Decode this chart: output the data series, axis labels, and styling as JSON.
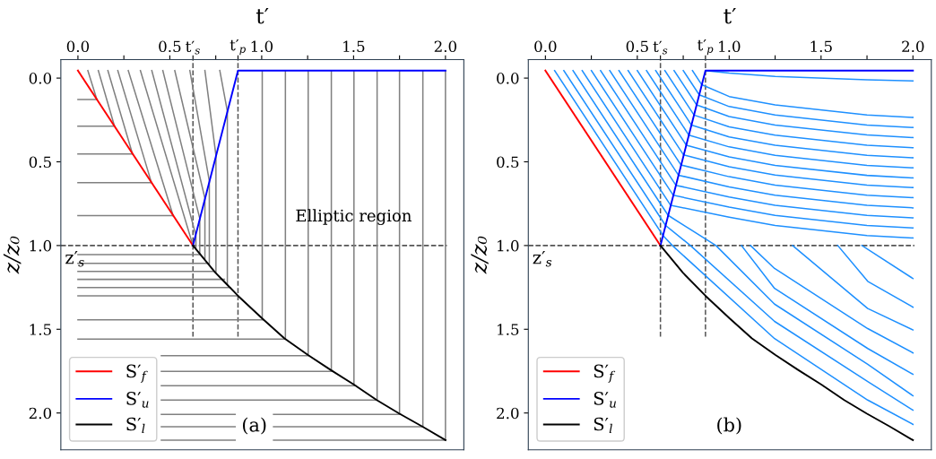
{
  "chart_data": [
    {
      "type": "line",
      "xlabel": "t′",
      "ylabel": "z/z₀",
      "xlim": [
        -0.093,
        2.1
      ],
      "ylim": [
        2.22,
        -0.11
      ],
      "xticks": [
        {
          "value": 0,
          "label": "0.0"
        },
        {
          "value": 0.25,
          "label": null
        },
        {
          "value": 0.5,
          "label": "0.5"
        },
        {
          "value": 0.626,
          "label": "t′$_{s}$"
        },
        {
          "value": 0.75,
          "label": null
        },
        {
          "value": 0.871,
          "label": "t′$_{p}$"
        },
        {
          "value": 1,
          "label": "1.0"
        },
        {
          "value": 1.25,
          "label": null
        },
        {
          "value": 1.5,
          "label": "1.5"
        },
        {
          "value": 1.75,
          "label": null
        },
        {
          "value": 2,
          "label": "2.0"
        }
      ],
      "yticks": [
        {
          "value": 0,
          "label": "0.0"
        },
        {
          "value": 0.5,
          "label": "0.5"
        },
        {
          "value": 1,
          "label": "1.0"
        },
        {
          "value": 1.5,
          "label": "1.5"
        },
        {
          "value": 2,
          "label": "2.0"
        }
      ],
      "legend": "bottom left",
      "ref_lines": [
        {
          "axis": "y",
          "value": 1.0,
          "color": "#555555",
          "line_style": "dashed"
        },
        {
          "axis": "x",
          "value": 0.626,
          "color": "#555555",
          "line_style": "dashed"
        },
        {
          "axis": "x",
          "value": 0.871,
          "color": "#555555",
          "line_style": "dashed"
        }
      ],
      "annotations": [
        {
          "text": "Elliptic region",
          "x": 1.5,
          "y": 0.83
        },
        "z′$_{s}$",
        {
          "text": "(a)",
          "x": 0.96,
          "y": 2.08
        }
      ],
      "series": [
        {
          "color": "#808080",
          "x": [
            0.0,
            0.104
          ],
          "values": [
            0.128,
            0.128
          ]
        },
        {
          "color": "#808080",
          "x": [
            0.0,
            0.199
          ],
          "values": [
            0.287,
            0.287
          ]
        },
        {
          "color": "#808080",
          "x": [
            0.0,
            0.298
          ],
          "values": [
            0.453,
            0.453
          ]
        },
        {
          "color": "#808080",
          "x": [
            0.0,
            0.401
          ],
          "values": [
            0.624,
            0.624
          ]
        },
        {
          "color": "#808080",
          "x": [
            0.0,
            0.519
          ],
          "values": [
            0.821,
            0.821
          ]
        },
        {
          "color": "#808080",
          "x": [
            0.0,
            0.666
          ],
          "values": [
            1.054,
            1.054
          ]
        },
        {
          "color": "#808080",
          "x": [
            0.0,
            0.71
          ],
          "values": [
            1.106,
            1.106
          ]
        },
        {
          "color": "#808080",
          "x": [
            0.0,
            0.748
          ],
          "values": [
            1.154,
            1.154
          ]
        },
        {
          "color": "#808080",
          "x": [
            0.0,
            0.797
          ],
          "values": [
            1.202,
            1.202
          ]
        },
        {
          "color": "#808080",
          "x": [
            0.0,
            0.829
          ],
          "values": [
            1.251,
            1.251
          ]
        },
        {
          "color": "#808080",
          "x": [
            0.0,
            0.871
          ],
          "values": [
            1.301,
            1.301
          ]
        },
        {
          "color": "#808080",
          "x": [
            0.0,
            1.01
          ],
          "values": [
            1.444,
            1.444
          ]
        },
        {
          "color": "#808080",
          "x": [
            0.0,
            1.128
          ],
          "values": [
            1.559,
            1.559
          ]
        },
        {
          "color": "#808080",
          "x": [
            0.454,
            1.257
          ],
          "values": [
            1.658,
            1.658
          ]
        },
        {
          "color": "#808080",
          "x": [
            0.454,
            1.387
          ],
          "values": [
            1.752,
            1.752
          ]
        },
        {
          "color": "#808080",
          "x": [
            0.454,
            1.512
          ],
          "values": [
            1.837,
            1.837
          ]
        },
        {
          "color": "#808080",
          "x": [
            0.454,
            1.626
          ],
          "values": [
            1.923,
            1.923
          ]
        },
        {
          "color": "#808080",
          "x": [
            0.454,
            1.756
          ],
          "values": [
            2.008,
            2.008
          ]
        },
        {
          "color": "#808080",
          "x": [
            0.454,
            1.876
          ],
          "values": [
            2.082,
            2.082
          ]
        },
        {
          "color": "#808080",
          "x": [
            0.454,
            2.0
          ],
          "values": [
            2.162,
            2.162
          ]
        },
        {
          "color": "#808080",
          "x": [
            0.054,
            0.103
          ],
          "values": [
            -0.045,
            0.128
          ]
        },
        {
          "color": "#808080",
          "x": [
            0.111,
            0.199
          ],
          "values": [
            -0.045,
            0.287
          ]
        },
        {
          "color": "#808080",
          "x": [
            0.163,
            0.297
          ],
          "values": [
            -0.045,
            0.453
          ]
        },
        {
          "color": "#808080",
          "x": [
            0.217,
            0.4
          ],
          "values": [
            -0.045,
            0.624
          ]
        },
        {
          "color": "#808080",
          "x": [
            0.274,
            0.518
          ],
          "values": [
            -0.045,
            0.821
          ]
        },
        {
          "color": "#808080",
          "x": [
            0.34,
            0.626
          ],
          "values": [
            -0.045,
            1.0
          ]
        },
        {
          "color": "#808080",
          "x": [
            0.402,
            0.642,
            0.642
          ],
          "values": [
            -0.045,
            0.94,
            1.02
          ]
        },
        {
          "color": "#808080",
          "x": [
            0.462,
            0.663,
            0.663
          ],
          "values": [
            -0.045,
            0.838,
            1.045
          ]
        },
        {
          "color": "#808080",
          "x": [
            0.527,
            0.691,
            0.691
          ],
          "values": [
            -0.045,
            0.718,
            1.08
          ]
        },
        {
          "color": "#808080",
          "x": [
            0.609,
            0.715,
            0.715
          ],
          "values": [
            -0.045,
            0.615,
            1.11
          ]
        },
        {
          "color": "#808080",
          "x": [
            0.691,
            0.751,
            0.751
          ],
          "values": [
            -0.045,
            0.462,
            1.16
          ]
        },
        {
          "color": "#808080",
          "x": [
            0.772,
            0.813,
            0.813
          ],
          "values": [
            -0.045,
            0.197,
            1.23
          ]
        },
        {
          "color": "#808080",
          "x": [
            1.003,
            1.003
          ],
          "values": [
            -0.045,
            1.436
          ]
        },
        {
          "color": "#808080",
          "x": [
            1.129,
            1.129
          ],
          "values": [
            -0.045,
            1.555
          ]
        },
        {
          "color": "#808080",
          "x": [
            1.253,
            1.253
          ],
          "values": [
            -0.045,
            1.654
          ]
        },
        {
          "color": "#808080",
          "x": [
            1.379,
            1.379
          ],
          "values": [
            -0.045,
            1.745
          ]
        },
        {
          "color": "#808080",
          "x": [
            1.502,
            1.502
          ],
          "values": [
            -0.045,
            1.829
          ]
        },
        {
          "color": "#808080",
          "x": [
            1.628,
            1.628
          ],
          "values": [
            -0.045,
            1.923
          ]
        },
        {
          "color": "#808080",
          "x": [
            1.75,
            1.75
          ],
          "values": [
            -0.045,
            2.003
          ]
        },
        {
          "color": "#808080",
          "x": [
            1.877,
            1.877
          ],
          "values": [
            -0.045,
            2.082
          ]
        },
        {
          "color": "#808080",
          "x": [
            2.0,
            2.0
          ],
          "values": [
            -0.045,
            2.162
          ]
        },
        {
          "name": "S′$_{f}$",
          "color": "#ff0000",
          "x": [
            0.0,
            0.626
          ],
          "values": [
            -0.045,
            1.0
          ]
        },
        {
          "name": "S′$_{u}$",
          "color": "#0000ff",
          "x": [
            0.626,
            0.871,
            2.0
          ],
          "values": [
            1.0,
            -0.045,
            -0.045
          ]
        },
        {
          "name": "S′$_{l}$",
          "color": "#000000",
          "x": [
            0.626,
            0.748,
            0.871,
            1.003,
            1.124,
            1.252,
            1.377,
            1.5,
            1.626,
            1.748,
            1.876,
            2.0
          ],
          "values": [
            1.0,
            1.162,
            1.3,
            1.436,
            1.555,
            1.654,
            1.744,
            1.829,
            1.923,
            2.003,
            2.082,
            2.162
          ]
        }
      ]
    },
    {
      "type": "line",
      "xlabel": "t′",
      "ylabel": "z/z₀",
      "xlim": [
        -0.093,
        2.1
      ],
      "ylim": [
        2.22,
        -0.11
      ],
      "xticks": [
        {
          "value": 0,
          "label": "0.0"
        },
        {
          "value": 0.25,
          "label": null
        },
        {
          "value": 0.5,
          "label": "0.5"
        },
        {
          "value": 0.626,
          "label": "t′$_{s}$"
        },
        {
          "value": 0.75,
          "label": null
        },
        {
          "value": 0.871,
          "label": "t′$_{p}$"
        },
        {
          "value": 1,
          "label": "1.0"
        },
        {
          "value": 1.25,
          "label": null
        },
        {
          "value": 1.5,
          "label": "1.5"
        },
        {
          "value": 1.75,
          "label": null
        },
        {
          "value": 2,
          "label": "2.0"
        }
      ],
      "yticks": [
        {
          "value": 0,
          "label": "0.0"
        },
        {
          "value": 0.5,
          "label": "0.5"
        },
        {
          "value": 1,
          "label": "1.0"
        },
        {
          "value": 1.5,
          "label": "1.5"
        },
        {
          "value": 2,
          "label": "2.0"
        }
      ],
      "legend": "bottom left",
      "ref_lines": [
        {
          "axis": "y",
          "value": 1.0,
          "color": "#555555",
          "line_style": "dashed"
        },
        {
          "axis": "x",
          "value": 0.626,
          "color": "#555555",
          "line_style": "dashed"
        },
        {
          "axis": "x",
          "value": 0.871,
          "color": "#555555",
          "line_style": "dashed"
        }
      ],
      "annotations": [
        "z′$_{s}$",
        {
          "text": "(b)",
          "x": 1.0,
          "y": 2.08
        }
      ],
      "series": [
        {
          "color": "#1e90ff",
          "x": [
            0.05,
            0.64,
            0.691,
            1.247,
            1.754,
            2.0
          ],
          "values": [
            -0.045,
            0.94,
            1.0,
            1.556,
            1.923,
            2.068
          ]
        },
        {
          "color": "#1e90ff",
          "x": [
            0.1,
            0.654,
            0.789,
            1.247,
            1.754,
            2.0
          ],
          "values": [
            -0.045,
            0.88,
            1.0,
            1.453,
            1.812,
            1.983
          ]
        },
        {
          "color": "#1e90ff",
          "x": [
            0.15,
            0.668,
            0.928,
            1.247,
            1.754,
            2.0
          ],
          "values": [
            -0.045,
            0.82,
            1.0,
            1.35,
            1.709,
            1.897
          ]
        },
        {
          "color": "#1e90ff",
          "x": [
            0.2,
            0.682,
            1.0,
            1.25,
            1.75,
            2.0
          ],
          "values": [
            -0.045,
            0.76,
            0.83,
            0.88,
            0.94,
            0.955
          ]
        },
        {
          "color": "#1e90ff",
          "x": [
            0.25,
            0.696,
            1.0,
            1.25,
            1.75,
            2.0
          ],
          "values": [
            -0.045,
            0.7,
            0.77,
            0.82,
            0.88,
            0.895
          ]
        },
        {
          "color": "#1e90ff",
          "x": [
            0.3,
            0.71,
            1.0,
            1.25,
            1.75,
            2.0
          ],
          "values": [
            -0.045,
            0.64,
            0.71,
            0.76,
            0.82,
            0.835
          ]
        },
        {
          "color": "#1e90ff",
          "x": [
            0.35,
            0.724,
            1.0,
            1.25,
            1.75,
            2.0
          ],
          "values": [
            -0.045,
            0.58,
            0.65,
            0.7,
            0.76,
            0.775
          ]
        },
        {
          "color": "#1e90ff",
          "x": [
            0.4,
            0.738,
            1.0,
            1.25,
            1.75,
            2.0
          ],
          "values": [
            -0.045,
            0.519,
            0.589,
            0.639,
            0.699,
            0.714
          ]
        },
        {
          "color": "#1e90ff",
          "x": [
            0.45,
            0.752,
            1.0,
            1.25,
            1.75,
            2.0
          ],
          "values": [
            -0.045,
            0.459,
            0.529,
            0.579,
            0.639,
            0.654
          ]
        },
        {
          "color": "#1e90ff",
          "x": [
            0.5,
            0.767,
            1.0,
            1.25,
            1.75,
            2.0
          ],
          "values": [
            -0.045,
            0.401,
            0.471,
            0.521,
            0.581,
            0.596
          ]
        },
        {
          "color": "#1e90ff",
          "x": [
            0.55,
            0.781,
            1.0,
            1.25,
            1.75,
            2.0
          ],
          "values": [
            -0.045,
            0.341,
            0.411,
            0.461,
            0.521,
            0.536
          ]
        },
        {
          "color": "#1e90ff",
          "x": [
            0.6,
            0.795,
            1.0,
            1.25,
            1.75,
            2.0
          ],
          "values": [
            -0.045,
            0.281,
            0.351,
            0.401,
            0.461,
            0.476
          ]
        },
        {
          "color": "#1e90ff",
          "x": [
            0.65,
            0.809,
            1.0,
            1.25,
            1.75,
            2.0
          ],
          "values": [
            -0.045,
            0.221,
            0.291,
            0.341,
            0.401,
            0.416
          ]
        },
        {
          "color": "#1e90ff",
          "x": [
            0.7,
            0.823,
            1.0,
            1.25,
            1.75,
            2.0
          ],
          "values": [
            -0.045,
            0.16,
            0.23,
            0.28,
            0.34,
            0.355
          ]
        },
        {
          "color": "#1e90ff",
          "x": [
            0.75,
            0.837,
            1.0,
            1.25,
            1.75,
            2.0
          ],
          "values": [
            -0.045,
            0.1,
            0.17,
            0.22,
            0.28,
            0.295
          ]
        },
        {
          "color": "#1e90ff",
          "x": [
            0.8,
            0.851,
            1.0,
            1.25,
            1.75,
            2.0
          ],
          "values": [
            -0.045,
            0.04,
            0.11,
            0.16,
            0.22,
            0.235
          ]
        },
        {
          "color": "#1e90ff",
          "x": [
            0.871,
            1.0,
            1.25,
            1.75,
            2.0
          ],
          "values": [
            -0.045,
            -0.03,
            -0.01,
            0.01,
            0.017
          ]
        },
        {
          "color": "#1e90ff",
          "x": [
            1.067,
            1.247,
            1.754,
            2.0
          ],
          "values": [
            1.0,
            1.256,
            1.615,
            1.769
          ]
        },
        {
          "color": "#1e90ff",
          "x": [
            1.116,
            1.247,
            1.754,
            2.0
          ],
          "values": [
            1.0,
            1.137,
            1.496,
            1.641
          ]
        },
        {
          "color": "#1e90ff",
          "x": [
            1.345,
            1.754,
            2.0
          ],
          "values": [
            1.0,
            1.376,
            1.504
          ]
        },
        {
          "color": "#1e90ff",
          "x": [
            1.591,
            1.754,
            2.0
          ],
          "values": [
            1.0,
            1.214,
            1.368
          ]
        },
        {
          "color": "#1e90ff",
          "x": [
            1.722,
            2.0
          ],
          "values": [
            1.0,
            1.197
          ]
        },
        {
          "name": "S′$_{f}$",
          "color": "#ff0000",
          "x": [
            0.0,
            0.626
          ],
          "values": [
            -0.045,
            1.0
          ]
        },
        {
          "name": "S′$_{u}$",
          "color": "#0000ff",
          "x": [
            0.626,
            0.871,
            2.0
          ],
          "values": [
            1.0,
            -0.045,
            -0.045
          ]
        },
        {
          "name": "S′$_{l}$",
          "color": "#000000",
          "x": [
            0.626,
            0.748,
            0.871,
            1.003,
            1.124,
            1.252,
            1.377,
            1.5,
            1.626,
            1.748,
            1.876,
            2.0
          ],
          "values": [
            1.0,
            1.162,
            1.3,
            1.436,
            1.555,
            1.654,
            1.744,
            1.829,
            1.923,
            2.003,
            2.082,
            2.162
          ]
        }
      ]
    }
  ]
}
